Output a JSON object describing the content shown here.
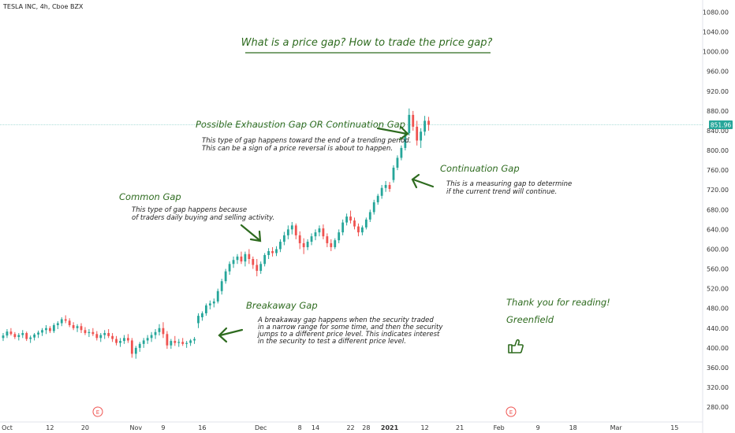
{
  "chart_data": {
    "type": "candlestick",
    "symbol": "TESLA INC, 4h, Cboe BZX",
    "last_price": "851.96",
    "ylim": [
      270,
      1100
    ],
    "y_ticks": [
      "1080.00",
      "1040.00",
      "1000.00",
      "960.00",
      "920.00",
      "880.00",
      "840.00",
      "800.00",
      "760.00",
      "720.00",
      "680.00",
      "640.00",
      "600.00",
      "560.00",
      "520.00",
      "480.00",
      "440.00",
      "400.00",
      "360.00",
      "320.00",
      "280.00"
    ],
    "x_ticks": [
      {
        "label": "Oct",
        "bar": 0
      },
      {
        "label": "12",
        "bar": 12
      },
      {
        "label": "20",
        "bar": 21
      },
      {
        "label": "Nov",
        "bar": 34
      },
      {
        "label": "9",
        "bar": 41
      },
      {
        "label": "16",
        "bar": 51
      },
      {
        "label": "Dec",
        "bar": 66
      },
      {
        "label": "8",
        "bar": 76
      },
      {
        "label": "14",
        "bar": 80
      },
      {
        "label": "22",
        "bar": 89
      },
      {
        "label": "28",
        "bar": 93
      },
      {
        "label": "2021",
        "bar": 99
      },
      {
        "label": "12",
        "bar": 108
      },
      {
        "label": "21",
        "bar": 117
      },
      {
        "label": "Feb",
        "bar": 127
      },
      {
        "label": "9",
        "bar": 137
      },
      {
        "label": "18",
        "bar": 146
      },
      {
        "label": "Mar",
        "bar": 157
      },
      {
        "label": "15",
        "bar": 172
      }
    ],
    "candles": [
      [
        420,
        430,
        414,
        425
      ],
      [
        425,
        438,
        420,
        433
      ],
      [
        433,
        440,
        425,
        428
      ],
      [
        428,
        432,
        418,
        422
      ],
      [
        422,
        430,
        415,
        426
      ],
      [
        426,
        436,
        420,
        430
      ],
      [
        430,
        433,
        414,
        418
      ],
      [
        418,
        425,
        410,
        421
      ],
      [
        421,
        430,
        415,
        427
      ],
      [
        427,
        435,
        420,
        431
      ],
      [
        431,
        440,
        424,
        436
      ],
      [
        436,
        446,
        428,
        440
      ],
      [
        440,
        444,
        430,
        434
      ],
      [
        434,
        450,
        430,
        446
      ],
      [
        446,
        454,
        438,
        450
      ],
      [
        450,
        462,
        444,
        458
      ],
      [
        458,
        466,
        450,
        455
      ],
      [
        455,
        460,
        442,
        446
      ],
      [
        446,
        452,
        436,
        440
      ],
      [
        440,
        448,
        432,
        444
      ],
      [
        444,
        450,
        430,
        436
      ],
      [
        436,
        442,
        426,
        430
      ],
      [
        430,
        438,
        422,
        432
      ],
      [
        432,
        440,
        424,
        428
      ],
      [
        428,
        434,
        415,
        420
      ],
      [
        420,
        430,
        412,
        426
      ],
      [
        426,
        436,
        418,
        430
      ],
      [
        430,
        438,
        420,
        424
      ],
      [
        424,
        430,
        412,
        418
      ],
      [
        418,
        424,
        405,
        410
      ],
      [
        410,
        420,
        402,
        414
      ],
      [
        414,
        426,
        408,
        420
      ],
      [
        420,
        428,
        410,
        415
      ],
      [
        415,
        420,
        380,
        388
      ],
      [
        388,
        404,
        378,
        400
      ],
      [
        400,
        412,
        392,
        408
      ],
      [
        408,
        420,
        400,
        415
      ],
      [
        415,
        426,
        408,
        420
      ],
      [
        420,
        432,
        412,
        426
      ],
      [
        426,
        438,
        418,
        432
      ],
      [
        432,
        448,
        425,
        440
      ],
      [
        440,
        452,
        420,
        428
      ],
      [
        428,
        434,
        398,
        405
      ],
      [
        405,
        418,
        398,
        414
      ],
      [
        414,
        424,
        404,
        410
      ],
      [
        410,
        418,
        402,
        412
      ],
      [
        412,
        420,
        404,
        408
      ],
      [
        408,
        414,
        400,
        410
      ],
      [
        410,
        418,
        404,
        415
      ],
      [
        415,
        422,
        408,
        418
      ],
      [
        450,
        470,
        440,
        465
      ],
      [
        462,
        474,
        455,
        470
      ],
      [
        470,
        490,
        465,
        486
      ],
      [
        486,
        496,
        478,
        490
      ],
      [
        490,
        500,
        482,
        494
      ],
      [
        494,
        520,
        490,
        515
      ],
      [
        515,
        540,
        508,
        535
      ],
      [
        535,
        560,
        530,
        555
      ],
      [
        555,
        575,
        548,
        570
      ],
      [
        570,
        585,
        562,
        578
      ],
      [
        578,
        590,
        570,
        585
      ],
      [
        585,
        595,
        570,
        575
      ],
      [
        575,
        595,
        565,
        590
      ],
      [
        590,
        600,
        570,
        580
      ],
      [
        580,
        585,
        560,
        568
      ],
      [
        568,
        580,
        545,
        556
      ],
      [
        556,
        575,
        550,
        570
      ],
      [
        570,
        592,
        565,
        588
      ],
      [
        588,
        602,
        580,
        596
      ],
      [
        596,
        604,
        585,
        592
      ],
      [
        592,
        606,
        586,
        600
      ],
      [
        600,
        620,
        594,
        615
      ],
      [
        615,
        635,
        608,
        628
      ],
      [
        628,
        648,
        620,
        640
      ],
      [
        640,
        655,
        630,
        648
      ],
      [
        648,
        652,
        620,
        628
      ],
      [
        628,
        636,
        600,
        612
      ],
      [
        612,
        622,
        590,
        604
      ],
      [
        604,
        620,
        598,
        615
      ],
      [
        615,
        632,
        608,
        626
      ],
      [
        626,
        640,
        618,
        634
      ],
      [
        634,
        648,
        626,
        642
      ],
      [
        642,
        650,
        620,
        626
      ],
      [
        626,
        632,
        604,
        612
      ],
      [
        612,
        620,
        596,
        604
      ],
      [
        604,
        622,
        600,
        618
      ],
      [
        618,
        640,
        612,
        634
      ],
      [
        634,
        660,
        628,
        654
      ],
      [
        654,
        672,
        648,
        666
      ],
      [
        666,
        678,
        652,
        658
      ],
      [
        658,
        664,
        640,
        646
      ],
      [
        646,
        652,
        626,
        634
      ],
      [
        634,
        648,
        628,
        644
      ],
      [
        644,
        664,
        640,
        660
      ],
      [
        660,
        680,
        655,
        675
      ],
      [
        675,
        700,
        670,
        695
      ],
      [
        695,
        712,
        690,
        708
      ],
      [
        708,
        730,
        702,
        724
      ],
      [
        724,
        738,
        716,
        730
      ],
      [
        730,
        736,
        716,
        722
      ],
      [
        740,
        770,
        735,
        765
      ],
      [
        765,
        790,
        760,
        785
      ],
      [
        785,
        810,
        780,
        805
      ],
      [
        805,
        840,
        800,
        835
      ],
      [
        835,
        885,
        830,
        872
      ],
      [
        872,
        880,
        840,
        848
      ],
      [
        848,
        860,
        810,
        820
      ],
      [
        820,
        845,
        805,
        838
      ],
      [
        838,
        870,
        830,
        860
      ],
      [
        860,
        868,
        840,
        852
      ]
    ]
  },
  "annotations": {
    "headline": "What is a price gap?   How to trade the price gap?",
    "exhaustion": {
      "title": "Possible Exhaustion Gap OR Continuation Gap",
      "line1": "This type of gap happens toward the end of a trending period.",
      "line2": "This can be a sign of a price reversal is about to happen."
    },
    "continuation": {
      "title": "Continuation Gap",
      "line1": "This is a measuring gap to determine",
      "line2": "if the current trend will continue."
    },
    "common": {
      "title": "Common Gap",
      "line1": "This type of gap happens because",
      "line2": "of traders daily buying and selling activity."
    },
    "breakaway": {
      "title": "Breakaway Gap",
      "line1": "A breakaway gap happens when the security traded",
      "line2": "in a narrow range for some time, and then the security",
      "line3": "jumps to a different price level.  This indicates interest",
      "line4": "in the security to test a different price level."
    },
    "thanks": "Thank you for reading!",
    "author": "Greenfield",
    "earnings_marker": "E"
  },
  "colors": {
    "up": "#26a69a",
    "down": "#ef5350",
    "annotation": "#2e6b1f",
    "price_badge": "#26a69a"
  },
  "icons": {
    "thumbs_up": "thumbs-up-icon",
    "arrow": "arrow-icon"
  }
}
